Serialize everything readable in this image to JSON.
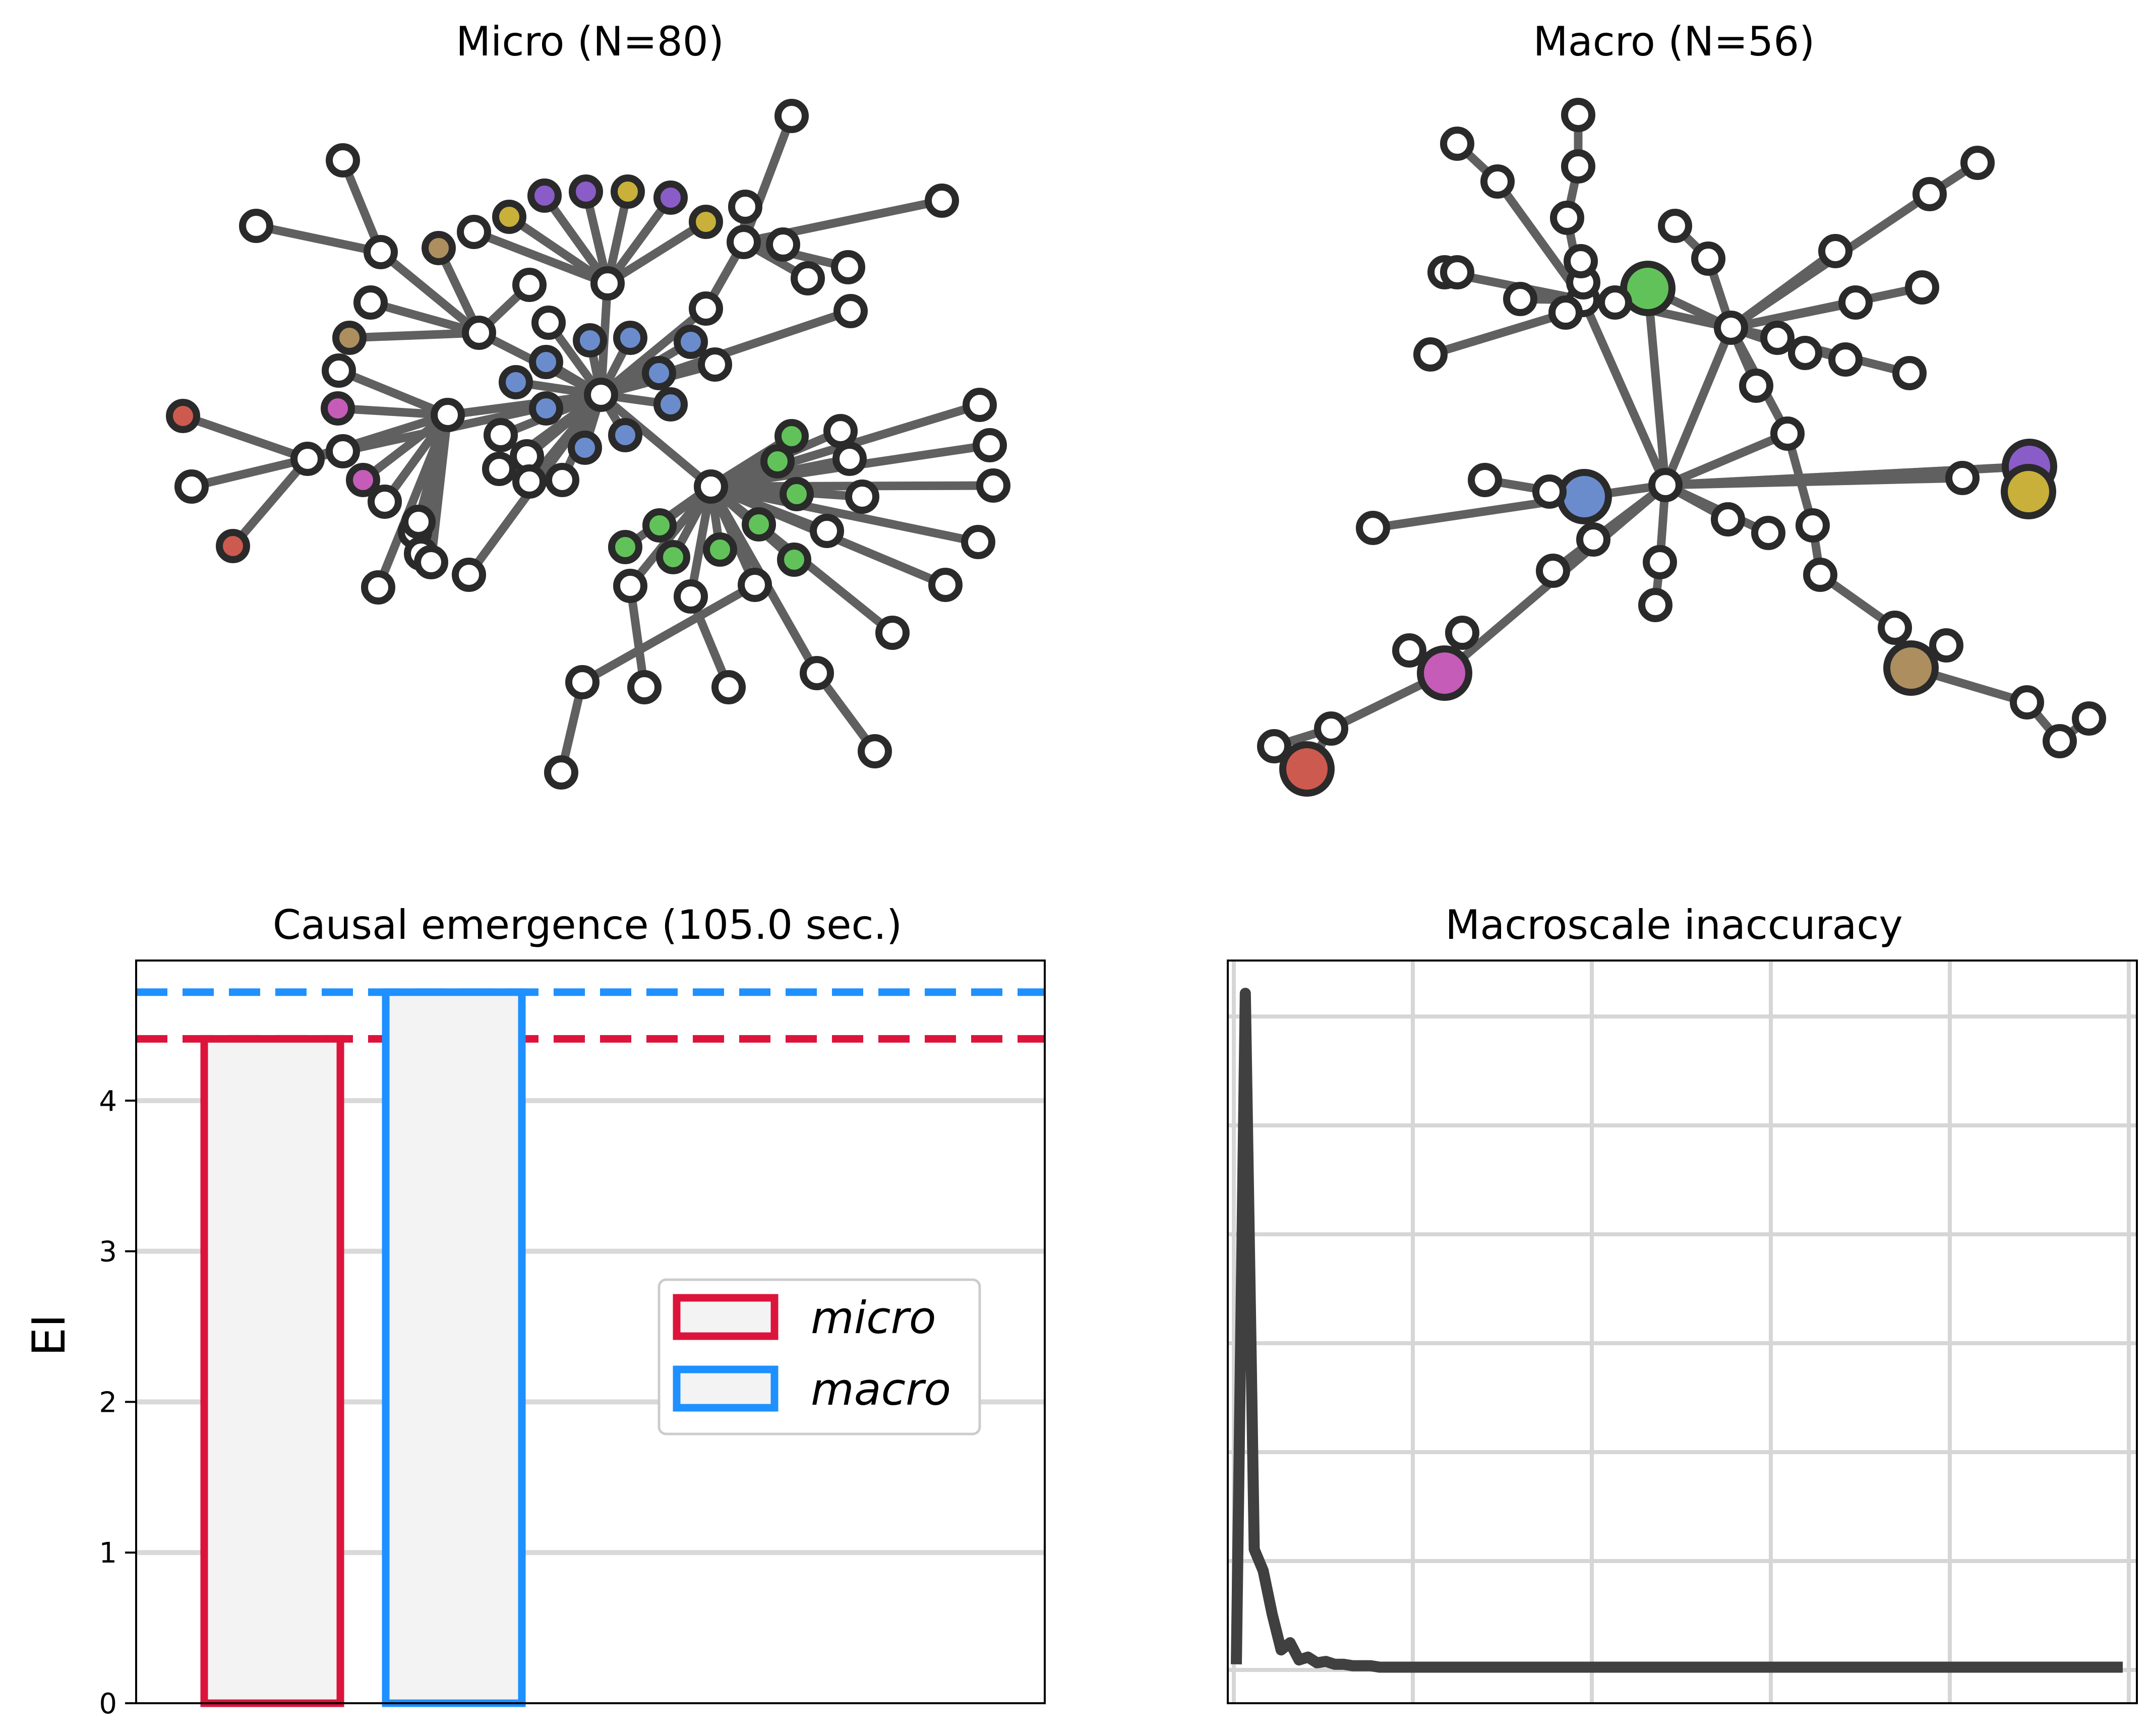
{
  "chart_data": [
    {
      "type": "network",
      "title": "Micro (N=80)",
      "edge_color": "#606060",
      "node_default_color": "#ffffff",
      "node_stroke": "#2a2a2a"
    },
    {
      "type": "network",
      "title": "Macro (N=56)",
      "edge_color": "#606060",
      "node_default_color": "#ffffff",
      "node_stroke": "#2a2a2a"
    },
    {
      "type": "bar",
      "title": "Causal emergence (105.0 sec.)",
      "ylabel": "EI",
      "ylim": [
        0,
        4.93
      ],
      "yticks": [
        "0",
        "1",
        "2",
        "3",
        "4"
      ],
      "grid": true,
      "legend_position": "center-right",
      "series": [
        {
          "name": "micro",
          "value": 4.41,
          "color": "#dc143c"
        },
        {
          "name": "macro",
          "value": 4.72,
          "color": "#1e90ff"
        }
      ]
    },
    {
      "type": "line",
      "title": "Macroscale inaccuracy",
      "grid": true,
      "color": "#404040",
      "values": [
        0.05,
        4.72,
        0.85,
        0.7,
        0.4,
        0.15,
        0.2,
        0.08,
        0.1,
        0.06,
        0.07,
        0.05,
        0.05,
        0.04,
        0.04,
        0.04,
        0.03,
        0.03,
        0.03,
        0.03,
        0.03,
        0.03,
        0.03,
        0.03,
        0.03,
        0.03,
        0.03,
        0.03,
        0.03,
        0.03,
        0.03,
        0.03,
        0.03,
        0.03,
        0.03,
        0.03,
        0.03,
        0.03,
        0.03,
        0.03,
        0.03,
        0.03,
        0.03,
        0.03,
        0.03,
        0.03,
        0.03,
        0.03,
        0.03,
        0.03,
        0.03,
        0.03,
        0.03,
        0.03,
        0.03,
        0.03,
        0.03,
        0.03,
        0.03,
        0.03,
        0.03,
        0.03,
        0.03,
        0.03,
        0.03,
        0.03,
        0.03,
        0.03,
        0.03,
        0.03,
        0.03,
        0.03,
        0.03,
        0.03,
        0.03,
        0.03,
        0.03,
        0.03,
        0.03,
        0.03,
        0.03,
        0.03,
        0.03,
        0.03,
        0.03,
        0.03,
        0.03,
        0.03,
        0.03,
        0.03,
        0.03,
        0.03,
        0.03,
        0.03,
        0.03,
        0.03,
        0.03,
        0.03,
        0.03,
        0.03
      ]
    }
  ]
}
